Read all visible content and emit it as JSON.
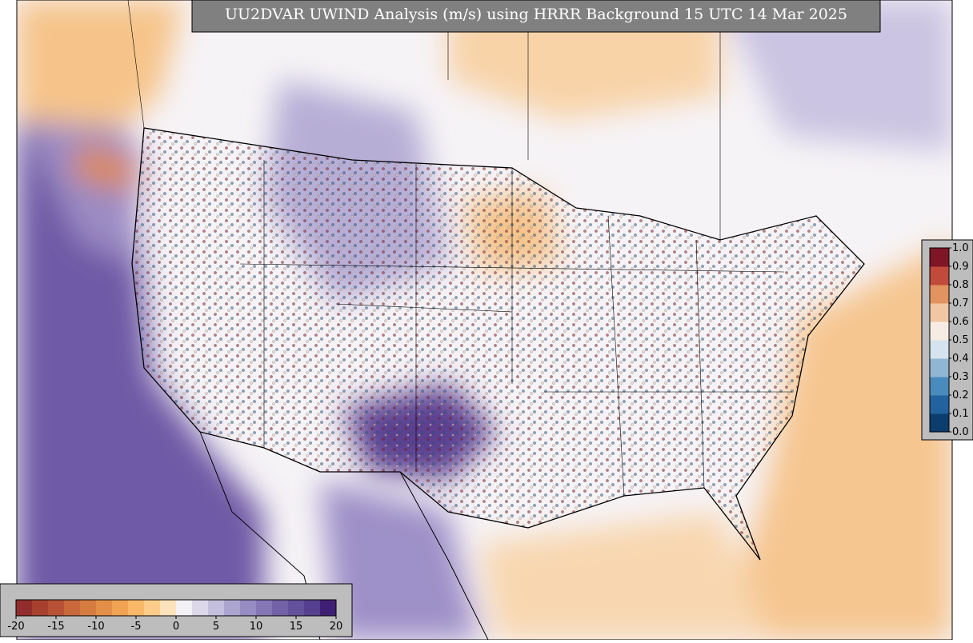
{
  "title": "UU2DVAR UWIND Analysis (m/s) using HRRR Background 15 UTC 14 Mar 2025",
  "wind_colorbar": {
    "range": [
      -20,
      20
    ],
    "ticks": [
      -20,
      -15,
      -10,
      -5,
      0,
      5,
      10,
      15,
      20
    ],
    "colors": [
      "#922d2d",
      "#a8402f",
      "#b85236",
      "#c8683b",
      "#d67c40",
      "#e48f47",
      "#f0a354",
      "#f8b867",
      "#fccd8a",
      "#fde3bb",
      "#f4f1f6",
      "#dcd8ea",
      "#c4bfdd",
      "#aca5d0",
      "#978dc3",
      "#8576b6",
      "#7462a9",
      "#64519c",
      "#553f8f",
      "#3f1f74"
    ]
  },
  "obs_colorbar": {
    "range": [
      0,
      1
    ],
    "ticks": [
      {
        "value": 0,
        "label": "0.0"
      },
      0.1,
      0.2,
      0.3,
      0.4,
      0.5,
      0.6,
      0.7,
      0.8,
      0.9,
      {
        "value": 1,
        "label": "1.0"
      }
    ],
    "colors": [
      "#0b3d6e",
      "#22629e",
      "#4a8bbd",
      "#8fb7d4",
      "#d4e3ee",
      "#f7ece4",
      "#f1c7a3",
      "#e2935f",
      "#c24a3a",
      "#7f1626"
    ]
  }
}
